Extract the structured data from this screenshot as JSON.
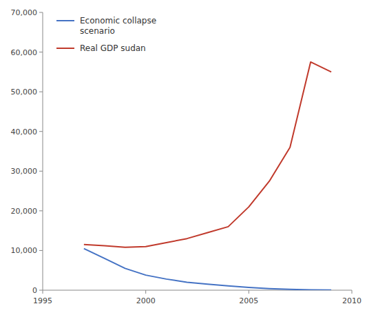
{
  "chart_data": {
    "type": "line",
    "x": [
      1997,
      1998,
      1999,
      2000,
      2001,
      2002,
      2003,
      2004,
      2005,
      2006,
      2007,
      2008,
      2009
    ],
    "series": [
      {
        "name": "Economic collapse\nscenario",
        "color": "#4472C4",
        "values": [
          10500,
          8000,
          5500,
          3800,
          2800,
          2000,
          1500,
          1100,
          700,
          400,
          200,
          100,
          50
        ]
      },
      {
        "name": "Real GDP sudan",
        "color": "#C0392B",
        "values": [
          11500,
          11200,
          10800,
          11000,
          12000,
          13000,
          14500,
          16000,
          21000,
          27500,
          36000,
          57500,
          55000
        ]
      }
    ],
    "xlim": [
      1995,
      2010
    ],
    "ylim": [
      0,
      70000
    ],
    "xticks": [
      1995,
      2000,
      2005,
      2010
    ],
    "yticks": [
      0,
      {
        "value": 10000,
        "label": "10,000"
      },
      {
        "value": 20000,
        "label": "20,000"
      },
      {
        "value": 30000,
        "label": "30,000"
      },
      {
        "value": 40000,
        "label": "40,000"
      },
      {
        "value": 50000,
        "label": "50,000"
      },
      {
        "value": 60000,
        "label": "60,000"
      },
      {
        "value": 70000,
        "label": "70,000"
      }
    ],
    "grid": false,
    "legend": "upper left"
  }
}
